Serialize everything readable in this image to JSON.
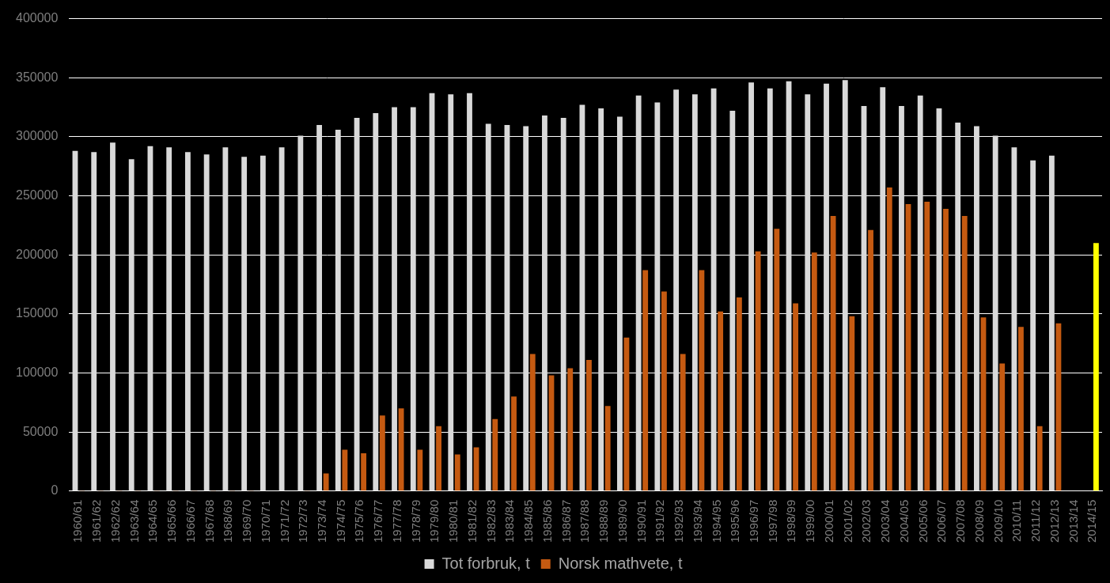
{
  "chart_data": {
    "type": "bar",
    "categories": [
      "1960/61",
      "1961/62",
      "1962/62",
      "1963/64",
      "1964/65",
      "1965/66",
      "1966/67",
      "1967/68",
      "1968/69",
      "1969/70",
      "1970/71",
      "1971/72",
      "1972/73",
      "1973/74",
      "1974/75",
      "1975/76",
      "1976/77",
      "1977/78",
      "1978/79",
      "1979/80",
      "1980/81",
      "1981/82",
      "1982/83",
      "1983/84",
      "1984/85",
      "1985/86",
      "1986/87",
      "1987/88",
      "1988/89",
      "1989/90",
      "1990/91",
      "1991/92",
      "1992/93",
      "1993/94",
      "1994/95",
      "1995/96",
      "1996/97",
      "1997/98",
      "1998/99",
      "1999/00",
      "2000/01",
      "2001/02",
      "2002/03",
      "2003/04",
      "2004/05",
      "2005/06",
      "2006/07",
      "2007/08",
      "2008/09",
      "2009/10",
      "2010/11",
      "2011/12",
      "2012/13",
      "2013/14",
      "2014/15"
    ],
    "series": [
      {
        "name": "Tot forbruk, t",
        "color": "#d9d9d9",
        "values": [
          288000,
          287000,
          295000,
          281000,
          292000,
          291000,
          287000,
          285000,
          291000,
          283000,
          284000,
          291000,
          301000,
          310000,
          306000,
          316000,
          320000,
          325000,
          325000,
          337000,
          336000,
          337000,
          311000,
          310000,
          309000,
          318000,
          316000,
          327000,
          324000,
          317000,
          335000,
          329000,
          340000,
          336000,
          341000,
          322000,
          346000,
          341000,
          347000,
          336000,
          345000,
          348000,
          326000,
          342000,
          326000,
          335000,
          324000,
          312000,
          309000,
          301000,
          291000,
          280000,
          284000,
          null,
          null
        ]
      },
      {
        "name": "Norsk mathvete, t",
        "color": "#c55a11",
        "colors": [
          "#c55a11",
          "#c55a11",
          "#c55a11",
          "#c55a11",
          "#c55a11",
          "#c55a11",
          "#c55a11",
          "#c55a11",
          "#c55a11",
          "#c55a11",
          "#c55a11",
          "#c55a11",
          "#c55a11",
          "#c55a11",
          "#c55a11",
          "#c55a11",
          "#c55a11",
          "#c55a11",
          "#c55a11",
          "#c55a11",
          "#c55a11",
          "#c55a11",
          "#c55a11",
          "#c55a11",
          "#c55a11",
          "#c55a11",
          "#c55a11",
          "#c55a11",
          "#c55a11",
          "#c55a11",
          "#c55a11",
          "#c55a11",
          "#c55a11",
          "#c55a11",
          "#c55a11",
          "#c55a11",
          "#c55a11",
          "#c55a11",
          "#c55a11",
          "#c55a11",
          "#c55a11",
          "#c55a11",
          "#c55a11",
          "#c55a11",
          "#c55a11",
          "#c55a11",
          "#c55a11",
          "#c55a11",
          "#c55a11",
          "#c55a11",
          "#c55a11",
          "#c55a11",
          "#c55a11",
          "#c55a11",
          "#ffff00"
        ],
        "values": [
          500,
          500,
          500,
          500,
          500,
          500,
          500,
          500,
          500,
          500,
          0,
          0,
          500,
          15000,
          35000,
          32000,
          64000,
          70000,
          35000,
          55000,
          31000,
          37000,
          61000,
          80000,
          116000,
          98000,
          104000,
          111000,
          72000,
          130000,
          187000,
          169000,
          116000,
          187000,
          152000,
          164000,
          203000,
          222000,
          159000,
          202000,
          233000,
          148000,
          221000,
          257000,
          243000,
          245000,
          239000,
          233000,
          147000,
          108000,
          139000,
          55000,
          142000,
          null,
          210000
        ]
      }
    ],
    "ylim": [
      0,
      400000
    ],
    "yticks": [
      0,
      50000,
      100000,
      150000,
      200000,
      250000,
      300000,
      350000,
      400000
    ],
    "grid": true,
    "legend": "bottom"
  }
}
